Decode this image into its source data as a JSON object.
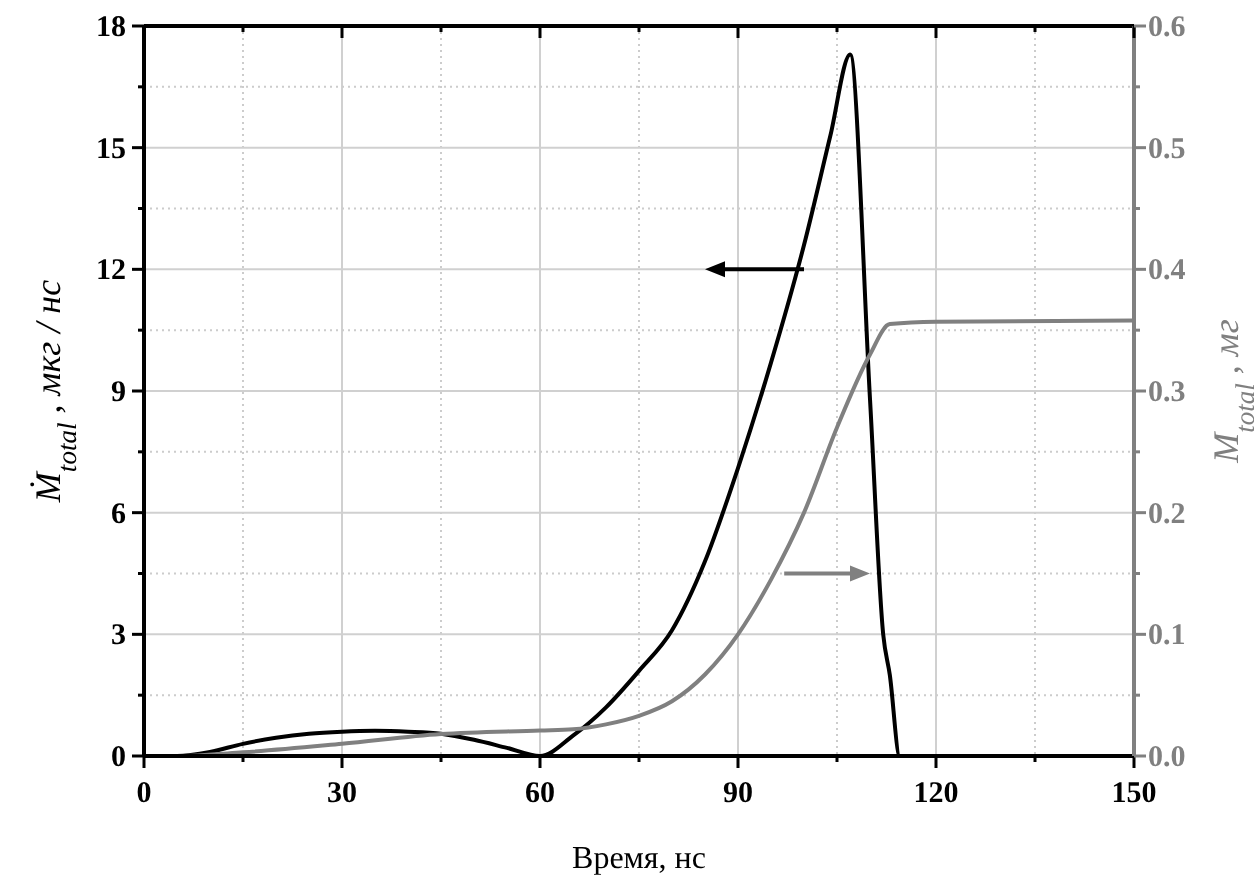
{
  "chart_data": {
    "type": "line",
    "xlabel": "Время, нс",
    "ylabel": "Ṁ$_{total}$ , мкг / нс",
    "y2label": "M$_{total}$ , мг",
    "xlim": [
      0,
      150
    ],
    "xticks": [
      0,
      {
        "value": 15,
        "label": null
      },
      30,
      {
        "value": 45,
        "label": null
      },
      60,
      {
        "value": 75,
        "label": null
      },
      90,
      {
        "value": 105,
        "label": null
      },
      120,
      {
        "value": 135,
        "label": null
      },
      150
    ],
    "ylim": [
      0,
      18
    ],
    "yticks": [
      0,
      {
        "value": 1.5,
        "label": null
      },
      3,
      {
        "value": 4.5,
        "label": null
      },
      6,
      {
        "value": 7.5,
        "label": null
      },
      9,
      {
        "value": 10.5,
        "label": null
      },
      12,
      {
        "value": 13.5,
        "label": null
      },
      15,
      {
        "value": 16.5,
        "label": null
      },
      18
    ],
    "y2lim": [
      0,
      0.6
    ],
    "y2ticks": [
      {
        "value": 0,
        "label": "0.0"
      },
      {
        "value": 0.05,
        "label": null
      },
      0.1,
      {
        "value": 0.15,
        "label": null
      },
      0.2,
      {
        "value": 0.25,
        "label": null
      },
      0.3,
      {
        "value": 0.35,
        "label": null
      },
      0.4,
      {
        "value": 0.45,
        "label": null
      },
      0.5,
      {
        "value": 0.55,
        "label": null
      },
      0.6
    ],
    "grid": true,
    "line_style": "solid",
    "series": [
      {
        "color": "#000000",
        "x": [
          0,
          5,
          10,
          15,
          20,
          25,
          30,
          35,
          40,
          45,
          50,
          55,
          60,
          65,
          70,
          75,
          80,
          85,
          90,
          95,
          100,
          104,
          107,
          110,
          112,
          113,
          114.5,
          150
        ],
        "values": [
          0,
          0,
          0.1,
          0.3,
          0.45,
          0.55,
          0.6,
          0.62,
          0.6,
          0.55,
          0.4,
          0.2,
          0,
          0.5,
          1.2,
          2.1,
          3.1,
          4.8,
          7.1,
          9.7,
          12.6,
          15.3,
          17.3,
          8.8,
          3,
          2,
          0,
          0
        ]
      },
      {
        "color": "#808080",
        "axis": "y2",
        "x": [
          0,
          5,
          15,
          30,
          45,
          60,
          65,
          70,
          75,
          80,
          85,
          90,
          95,
          100,
          105,
          110,
          113,
          120,
          150
        ],
        "values": [
          0,
          0,
          0.003,
          0.01,
          0.018,
          0.021,
          0.022,
          0.026,
          0.033,
          0.045,
          0.067,
          0.1,
          0.145,
          0.2,
          0.27,
          0.33,
          0.355,
          0.357,
          0.358
        ]
      }
    ]
  }
}
